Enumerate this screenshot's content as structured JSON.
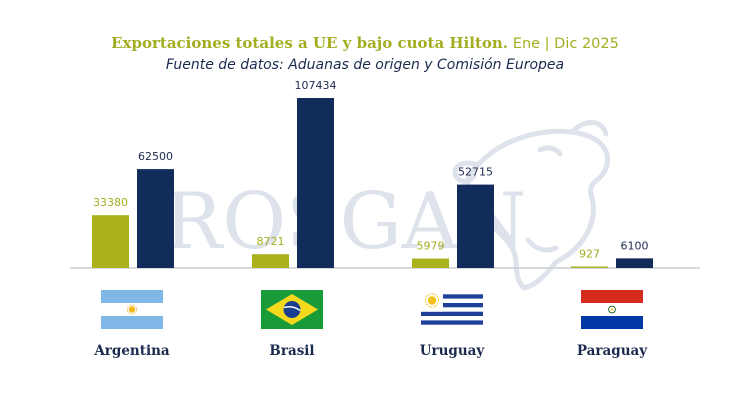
{
  "title": {
    "main": "Exportaciones totales a UE y bajo cuota Hilton.",
    "date": "Ene | Dic 2025",
    "subtitle": "Fuente de datos: Aduanas de origen y Comisión Europea"
  },
  "watermark": {
    "text": "ROSGAN",
    "icon": "cow-head-icon"
  },
  "colors": {
    "title_green": "#a3ad20",
    "navy": "#1b2a4e",
    "series_hilton": "#a9b21a",
    "series_total": "#112b5a",
    "hilton_label": "#a3ad20",
    "total_label": "#1b2a4e",
    "baseline": "#c9ced6",
    "watermark": "#d8dde8"
  },
  "chart_data": {
    "type": "bar",
    "categories": [
      "Argentina",
      "Brasil",
      "Uruguay",
      "Paraguay"
    ],
    "series": [
      {
        "values": [
          33380,
          8721,
          5979,
          927
        ]
      },
      {
        "values": [
          62500,
          107434,
          52715,
          6100
        ]
      }
    ],
    "ylim": [
      0,
      107434
    ],
    "grid": false,
    "legend": "none"
  },
  "flags": [
    "argentina-flag-icon",
    "brazil-flag-icon",
    "uruguay-flag-icon",
    "paraguay-flag-icon"
  ]
}
